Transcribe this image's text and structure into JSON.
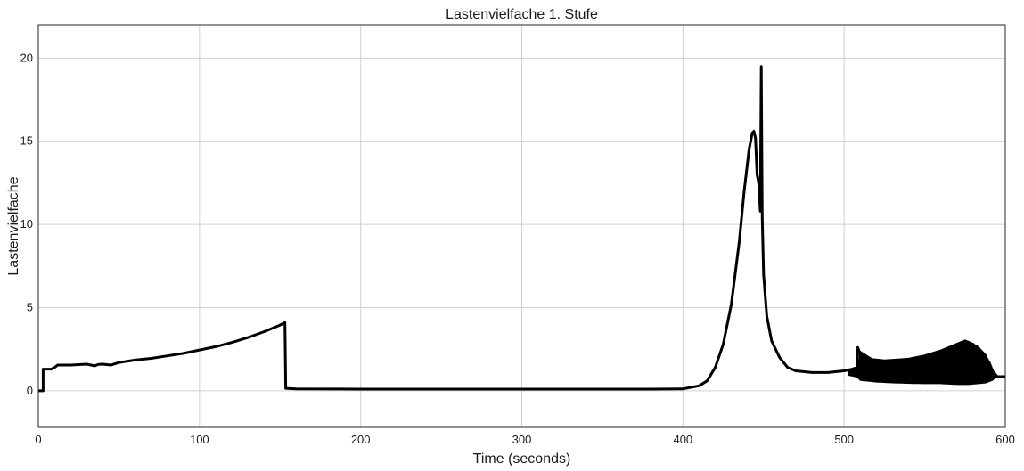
{
  "chart_data": {
    "type": "line",
    "title": "Lastenvielfache 1. Stufe",
    "xlabel": "Time (seconds)",
    "ylabel": "Lastenvielfache",
    "xlim": [
      0,
      600
    ],
    "ylim": [
      -2.2,
      22
    ],
    "xticks": [
      0,
      100,
      200,
      300,
      400,
      500,
      600
    ],
    "yticks": [
      0,
      5,
      10,
      15,
      20
    ],
    "grid": true,
    "line_color": "#000000",
    "series": [
      {
        "points": [
          [
            0,
            0
          ],
          [
            3,
            0
          ],
          [
            3,
            1.3
          ],
          [
            8,
            1.3
          ],
          [
            10,
            1.4
          ],
          [
            12,
            1.55
          ],
          [
            20,
            1.55
          ],
          [
            30,
            1.6
          ],
          [
            35,
            1.5
          ],
          [
            37,
            1.58
          ],
          [
            40,
            1.6
          ],
          [
            45,
            1.55
          ],
          [
            50,
            1.7
          ],
          [
            60,
            1.85
          ],
          [
            70,
            1.95
          ],
          [
            80,
            2.1
          ],
          [
            90,
            2.25
          ],
          [
            100,
            2.45
          ],
          [
            110,
            2.65
          ],
          [
            120,
            2.9
          ],
          [
            130,
            3.2
          ],
          [
            140,
            3.55
          ],
          [
            150,
            3.95
          ],
          [
            153,
            4.1
          ],
          [
            153.5,
            0.15
          ],
          [
            160,
            0.12
          ],
          [
            200,
            0.1
          ],
          [
            300,
            0.1
          ],
          [
            380,
            0.1
          ],
          [
            400,
            0.12
          ],
          [
            410,
            0.3
          ],
          [
            415,
            0.6
          ],
          [
            420,
            1.4
          ],
          [
            425,
            2.8
          ],
          [
            430,
            5.2
          ],
          [
            435,
            9.0
          ],
          [
            438,
            12.0
          ],
          [
            441,
            14.5
          ],
          [
            443,
            15.5
          ],
          [
            444,
            15.6
          ],
          [
            445,
            15.2
          ],
          [
            446,
            13.0
          ],
          [
            447,
            12.5
          ],
          [
            448,
            10.8
          ],
          [
            448.6,
            19.5
          ],
          [
            449.2,
            10.4
          ],
          [
            450,
            7.0
          ],
          [
            452,
            4.5
          ],
          [
            455,
            3.0
          ],
          [
            460,
            2.0
          ],
          [
            465,
            1.4
          ],
          [
            470,
            1.2
          ],
          [
            480,
            1.1
          ],
          [
            490,
            1.1
          ],
          [
            500,
            1.2
          ],
          [
            505,
            1.3
          ],
          [
            508,
            1.4
          ],
          [
            508.5,
            2.6
          ],
          [
            510,
            2.2
          ],
          [
            515,
            1.9
          ],
          [
            525,
            1.8
          ],
          [
            540,
            1.9
          ],
          [
            550,
            2.1
          ],
          [
            560,
            2.4
          ],
          [
            570,
            2.8
          ],
          [
            575,
            3.0
          ],
          [
            580,
            2.8
          ],
          [
            585,
            2.3
          ],
          [
            590,
            1.7
          ],
          [
            592,
            1.2
          ],
          [
            595,
            0.85
          ],
          [
            600,
            0.85
          ]
        ],
        "oscillation_band": [
          [
            503,
            1.3,
            0.9
          ],
          [
            508,
            1.45,
            0.8
          ],
          [
            510,
            2.4,
            0.6
          ],
          [
            520,
            1.8,
            0.5
          ],
          [
            530,
            1.85,
            0.45
          ],
          [
            540,
            1.95,
            0.42
          ],
          [
            550,
            2.15,
            0.4
          ],
          [
            560,
            2.45,
            0.4
          ],
          [
            570,
            2.8,
            0.35
          ],
          [
            577,
            3.0,
            0.35
          ],
          [
            583,
            2.7,
            0.4
          ],
          [
            588,
            2.2,
            0.45
          ],
          [
            592,
            1.4,
            0.6
          ],
          [
            594,
            0.95,
            0.75
          ]
        ]
      }
    ]
  }
}
